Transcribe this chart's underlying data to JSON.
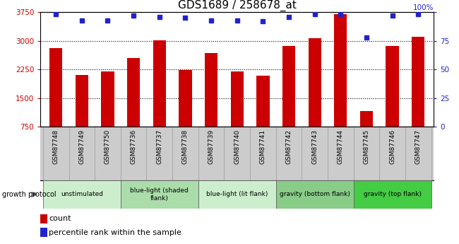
{
  "title": "GDS1689 / 258678_at",
  "samples": [
    "GSM87748",
    "GSM87749",
    "GSM87750",
    "GSM87736",
    "GSM87737",
    "GSM87738",
    "GSM87739",
    "GSM87740",
    "GSM87741",
    "GSM87742",
    "GSM87743",
    "GSM87744",
    "GSM87745",
    "GSM87746",
    "GSM87747"
  ],
  "counts": [
    2800,
    2100,
    2200,
    2550,
    3020,
    2230,
    2680,
    2200,
    2080,
    2870,
    3070,
    3700,
    1150,
    2870,
    3100
  ],
  "pct": [
    98,
    93,
    93,
    97,
    96,
    95,
    93,
    93,
    92,
    96,
    98,
    98,
    78,
    97,
    98
  ],
  "ylim_left": [
    750,
    3750
  ],
  "ylim_right": [
    0,
    100
  ],
  "yticks_left": [
    750,
    1500,
    2250,
    3000,
    3750
  ],
  "yticks_right": [
    0,
    25,
    50,
    75,
    100
  ],
  "bar_color": "#cc0000",
  "dot_color": "#2222cc",
  "sample_band_color": "#cccccc",
  "groups": [
    {
      "label": "unstimulated",
      "start": 0,
      "end": 3,
      "color": "#cceecc"
    },
    {
      "label": "blue-light (shaded\nflank)",
      "start": 3,
      "end": 6,
      "color": "#aaddaa"
    },
    {
      "label": "blue-light (lit flank)",
      "start": 6,
      "end": 9,
      "color": "#cceecc"
    },
    {
      "label": "gravity (bottom flank)",
      "start": 9,
      "end": 12,
      "color": "#88cc88"
    },
    {
      "label": "gravity (top flank)",
      "start": 12,
      "end": 15,
      "color": "#44cc44"
    }
  ],
  "fig_width": 6.5,
  "fig_height": 3.45,
  "dpi": 100
}
